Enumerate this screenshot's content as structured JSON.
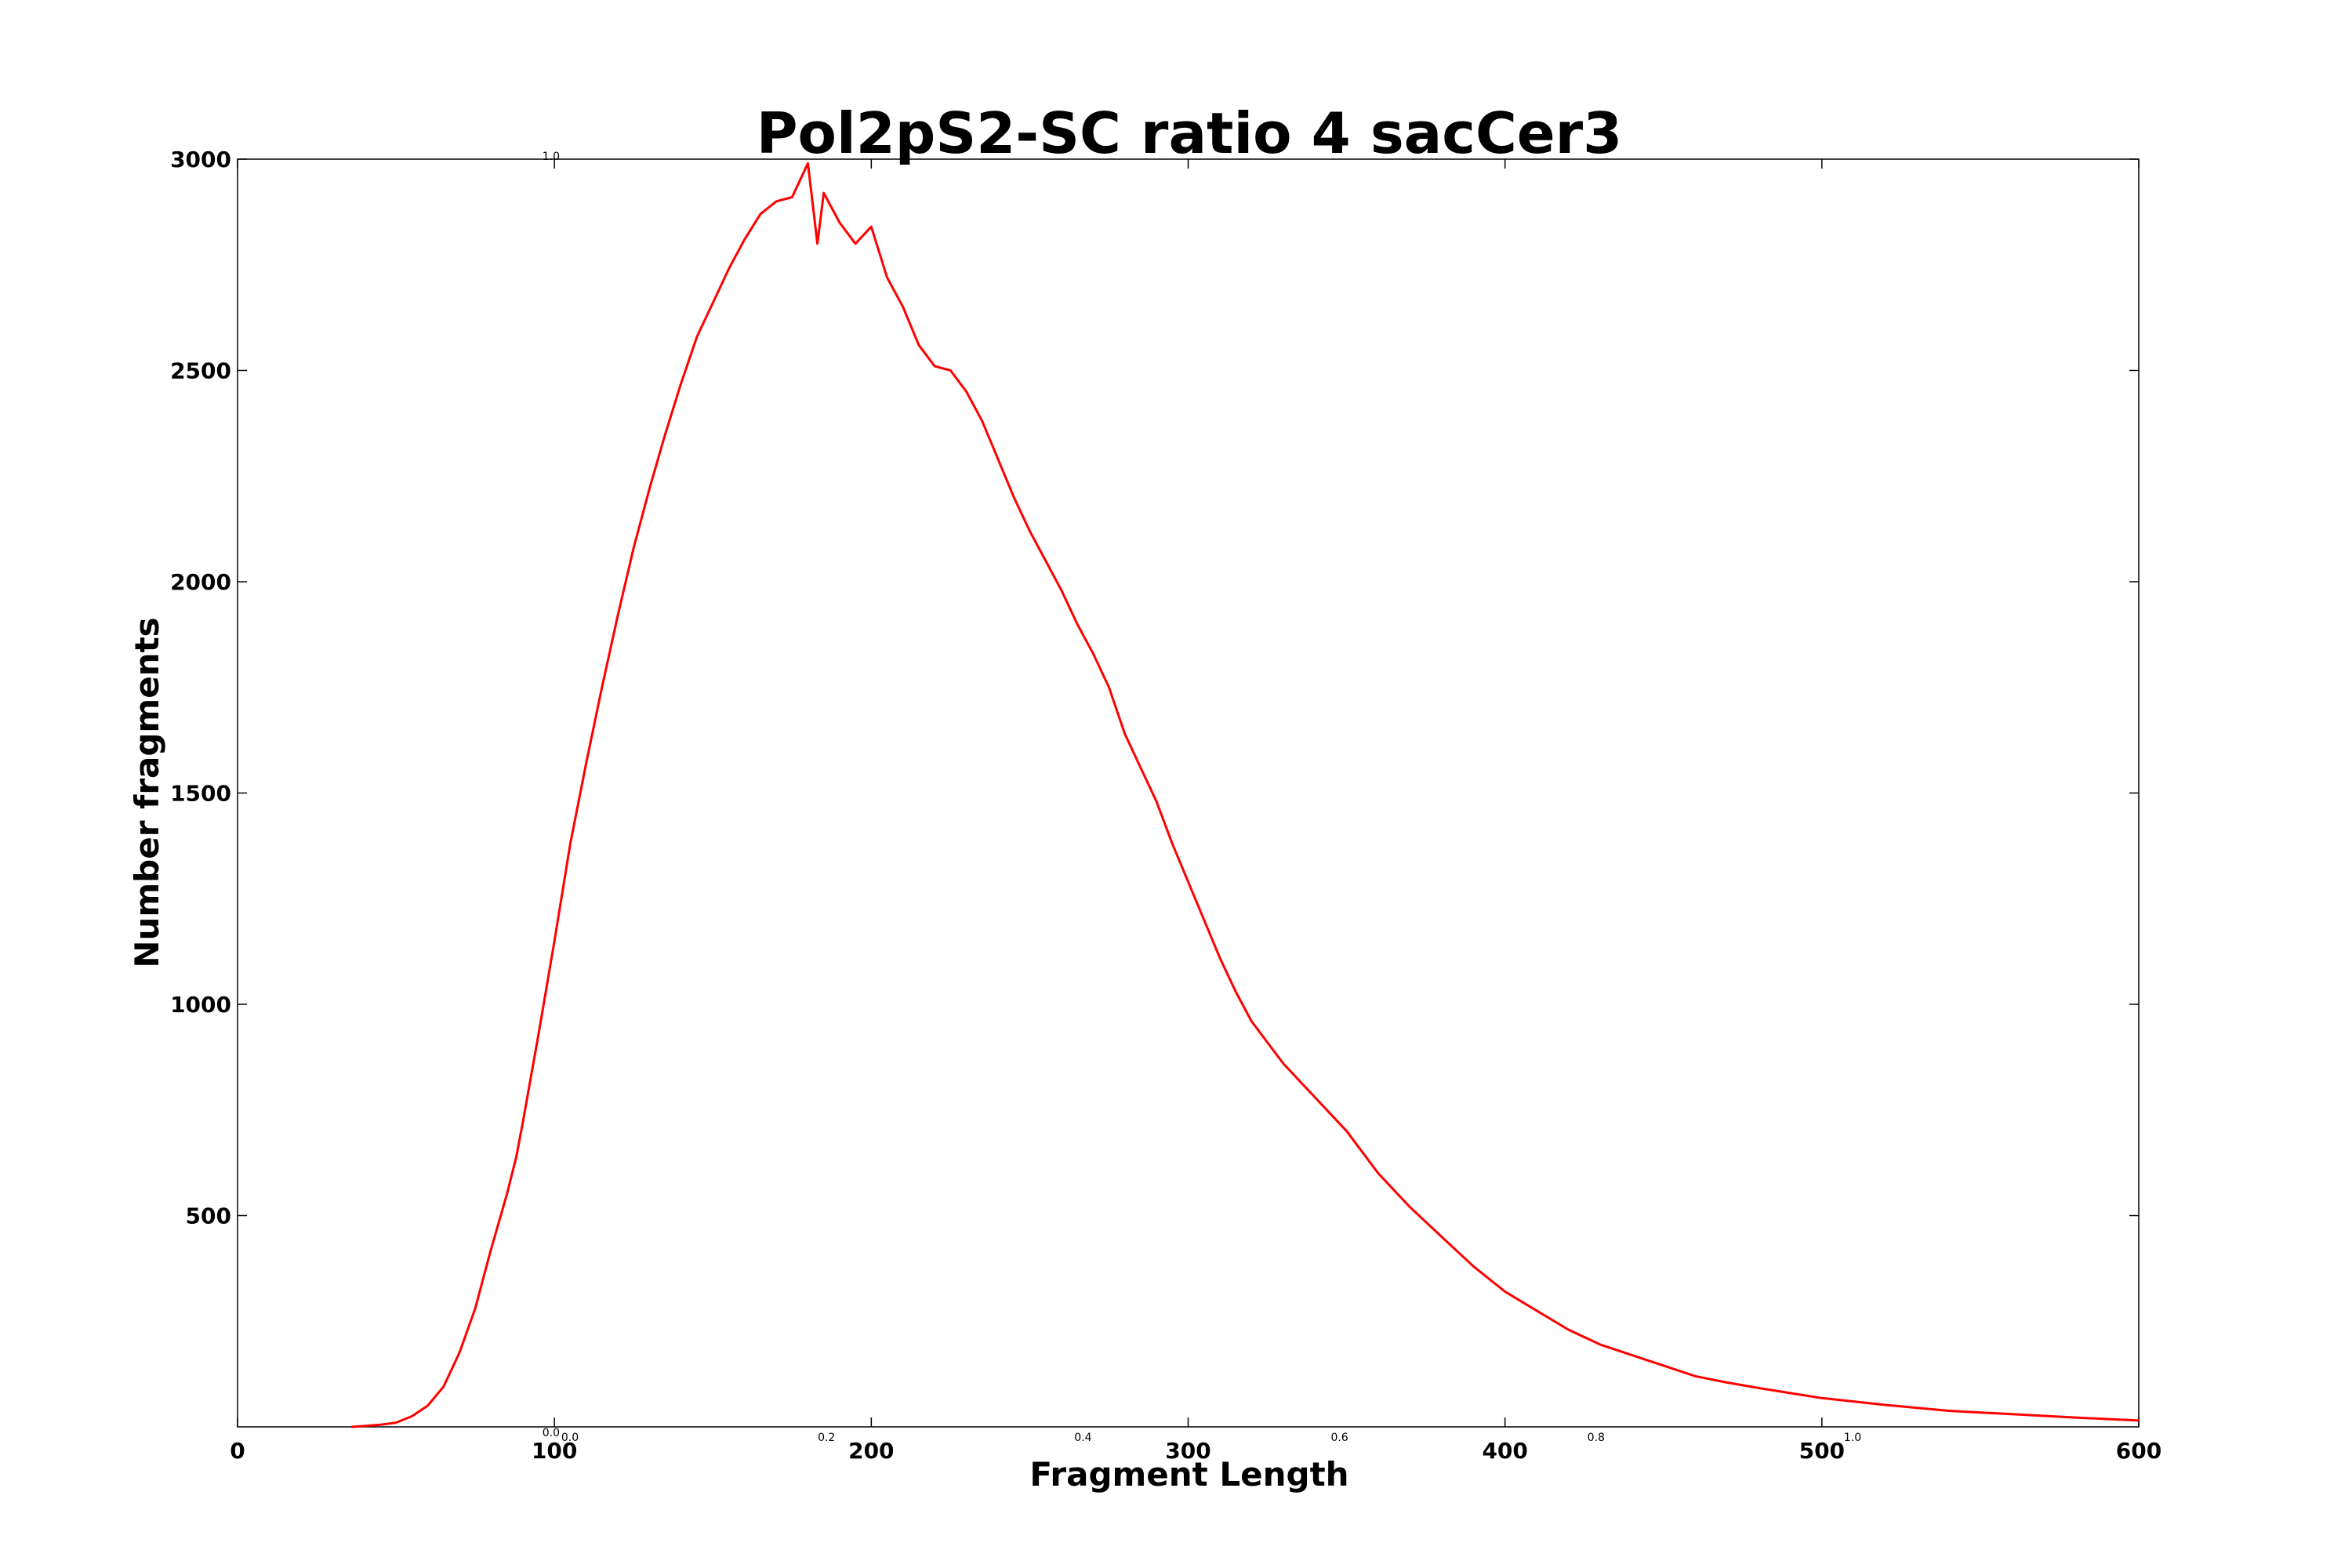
{
  "chart_data": {
    "type": "line",
    "title": "Pol2pS2-SC ratio 4 sacCer3",
    "xlabel": "Fragment Length",
    "ylabel": "Number fragments",
    "xlim": [
      0,
      600
    ],
    "ylim": [
      0,
      3000
    ],
    "x_ticks": [
      "0",
      "100",
      "200",
      "300",
      "400",
      "500",
      "600"
    ],
    "y_ticks": [
      "500",
      "1000",
      "1500",
      "2000",
      "2500",
      "3000"
    ],
    "inner_x_ticks": [
      "0.0",
      "0.2",
      "0.4",
      "0.6",
      "0.8",
      "1.0"
    ],
    "inner_y_ticks": [
      "0.0",
      "1.0"
    ],
    "grid": false,
    "legend": "none",
    "series": [
      {
        "color": "#ff0000",
        "x": [
          36,
          40,
          45,
          50,
          55,
          60,
          65,
          70,
          75,
          80,
          85,
          88,
          90,
          95,
          100,
          105,
          110,
          115,
          120,
          125,
          130,
          135,
          140,
          145,
          150,
          155,
          160,
          165,
          170,
          175,
          180,
          183,
          185,
          190,
          195,
          200,
          205,
          210,
          215,
          220,
          225,
          230,
          235,
          240,
          245,
          250,
          255,
          260,
          265,
          270,
          275,
          280,
          285,
          290,
          295,
          300,
          305,
          310,
          315,
          320,
          330,
          340,
          350,
          360,
          370,
          380,
          390,
          400,
          410,
          420,
          430,
          440,
          450,
          460,
          470,
          480,
          490,
          500,
          520,
          540,
          560,
          580,
          600
        ],
        "y": [
          0,
          2,
          5,
          10,
          25,
          50,
          95,
          175,
          280,
          420,
          550,
          640,
          720,
          930,
          1150,
          1380,
          1570,
          1750,
          1920,
          2080,
          2220,
          2350,
          2470,
          2580,
          2660,
          2740,
          2810,
          2870,
          2900,
          2910,
          2990,
          2800,
          2920,
          2850,
          2800,
          2840,
          2720,
          2650,
          2560,
          2510,
          2500,
          2450,
          2380,
          2290,
          2200,
          2120,
          2050,
          1980,
          1900,
          1830,
          1750,
          1640,
          1560,
          1480,
          1380,
          1290,
          1200,
          1110,
          1030,
          960,
          860,
          780,
          700,
          600,
          520,
          450,
          380,
          320,
          275,
          230,
          195,
          170,
          145,
          120,
          105,
          92,
          80,
          68,
          52,
          38,
          30,
          22,
          15
        ]
      }
    ]
  }
}
